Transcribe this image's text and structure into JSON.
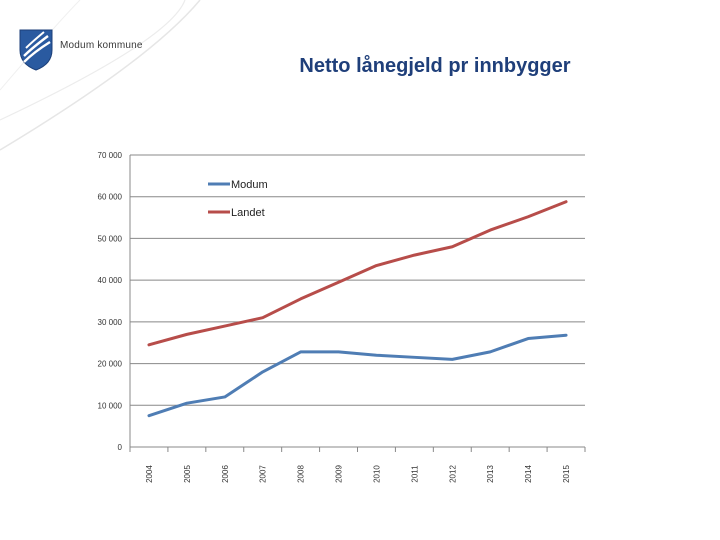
{
  "logo": {
    "text": "Modum kommune"
  },
  "colors": {
    "title": "#1f3f7a",
    "modum": "#4f7db4",
    "landet": "#b74d4a",
    "grid": "#888888"
  },
  "chart_data": {
    "type": "line",
    "title": "Netto lånegjeld pr innbygger",
    "xlabel": "",
    "ylabel": "",
    "categories": [
      "2004",
      "2005",
      "2006",
      "2007",
      "2008",
      "2009",
      "2010",
      "2011",
      "2012",
      "2013",
      "2014",
      "2015"
    ],
    "ylim": [
      0,
      70000
    ],
    "yticks": [
      0,
      10000,
      20000,
      30000,
      40000,
      50000,
      60000,
      70000
    ],
    "ytick_labels": [
      "0",
      "10 000",
      "20 000",
      "30 000",
      "40 000",
      "50 000",
      "60 000",
      "70 000"
    ],
    "grid": true,
    "legend_position": "top-left",
    "series": [
      {
        "name": "Modum",
        "color": "#4f7db4",
        "values": [
          7500,
          10500,
          12000,
          18000,
          22800,
          22800,
          22000,
          21500,
          21000,
          22800,
          26000,
          26800
        ]
      },
      {
        "name": "Landet",
        "color": "#b74d4a",
        "values": [
          24500,
          27000,
          29000,
          31000,
          35500,
          39500,
          43500,
          46000,
          48000,
          52000,
          55200,
          58800
        ]
      }
    ]
  }
}
